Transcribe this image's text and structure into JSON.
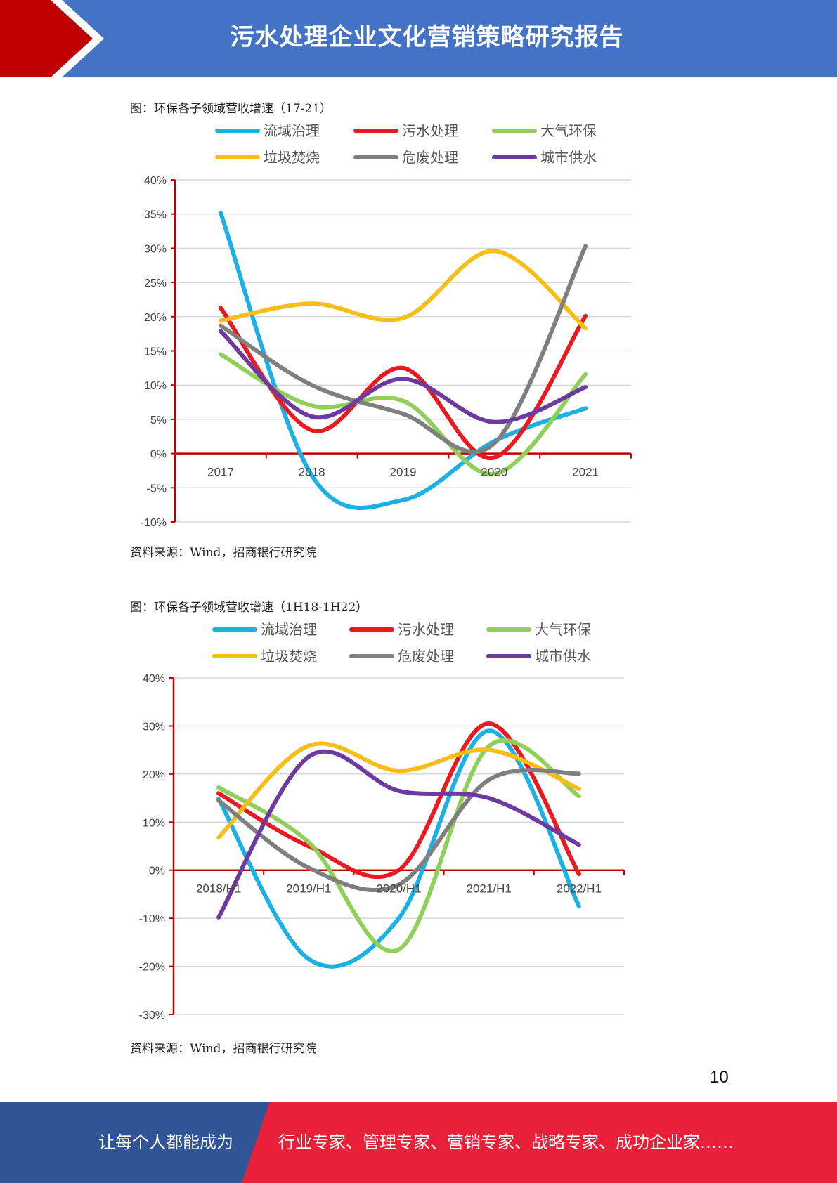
{
  "header": {
    "title": "污水处理企业文化营销策略研究报告"
  },
  "figures": [
    {
      "caption": "图：环保各子领域营收增速（17-21）",
      "source": "资料来源：Wind，招商银行研究院"
    },
    {
      "caption": "图：环保各子领域营收增速（1H18-1H22）",
      "source": "资料来源：Wind，招商银行研究院"
    }
  ],
  "page_number": "10",
  "footer": {
    "left": "让每个人都能成为",
    "right": "行业专家、管理专家、营销专家、战略专家、成功企业家……",
    "left_color": "#2F5597",
    "right_color": "#E8203A"
  },
  "chart_data": [
    {
      "type": "line",
      "title": "",
      "categories": [
        "2017",
        "2018",
        "2019",
        "2020",
        "2021"
      ],
      "y_ticks": [
        "40%",
        "35%",
        "30%",
        "25%",
        "20%",
        "15%",
        "10%",
        "5%",
        "0%",
        "-5%",
        "-10%"
      ],
      "ylim": [
        -10,
        40
      ],
      "grid": true,
      "legend": "top",
      "series": [
        {
          "name": "流域治理",
          "color": "#1BB0E6",
          "values": [
            35.2,
            -3.2,
            -6.8,
            1.8,
            6.6
          ]
        },
        {
          "name": "污水处理",
          "color": "#E81B23",
          "values": [
            21.3,
            3.4,
            12.5,
            -0.6,
            20.1
          ]
        },
        {
          "name": "大气环保",
          "color": "#8FCF5A",
          "values": [
            14.5,
            7.0,
            7.7,
            -3.0,
            11.6
          ]
        },
        {
          "name": "垃圾焚烧",
          "color": "#F7BE18",
          "values": [
            19.4,
            21.9,
            19.8,
            29.6,
            18.3
          ]
        },
        {
          "name": "危废处理",
          "color": "#7F7F7F",
          "values": [
            18.7,
            10.0,
            5.8,
            1.5,
            30.3
          ]
        },
        {
          "name": "城市供水",
          "color": "#6E3AA0",
          "values": [
            17.9,
            5.4,
            10.9,
            4.6,
            9.7
          ]
        }
      ]
    },
    {
      "type": "line",
      "title": "",
      "categories": [
        "2018/H1",
        "2019/H1",
        "2020/H1",
        "2021/H1",
        "2022/H1"
      ],
      "y_ticks": [
        "40%",
        "30%",
        "20%",
        "10%",
        "0%",
        "-10%",
        "-20%",
        "-30%"
      ],
      "ylim": [
        -30,
        40
      ],
      "grid": true,
      "legend": "top",
      "series": [
        {
          "name": "流域治理",
          "color": "#1BB0E6",
          "values": [
            14.8,
            -18.5,
            -10.0,
            29.0,
            -7.5
          ]
        },
        {
          "name": "污水处理",
          "color": "#E81B23",
          "values": [
            16.0,
            5.0,
            0.0,
            30.5,
            -0.8
          ]
        },
        {
          "name": "大气环保",
          "color": "#8FCF5A",
          "values": [
            17.2,
            5.8,
            -16.5,
            25.8,
            15.4
          ]
        },
        {
          "name": "垃圾焚烧",
          "color": "#F7BE18",
          "values": [
            6.8,
            25.9,
            20.7,
            25.0,
            16.9
          ]
        },
        {
          "name": "危废处理",
          "color": "#7F7F7F",
          "values": [
            14.5,
            0.5,
            -3.0,
            18.8,
            20.1
          ]
        },
        {
          "name": "城市供水",
          "color": "#6E3AA0",
          "values": [
            -9.8,
            23.6,
            16.5,
            15.0,
            5.3
          ]
        }
      ]
    }
  ]
}
